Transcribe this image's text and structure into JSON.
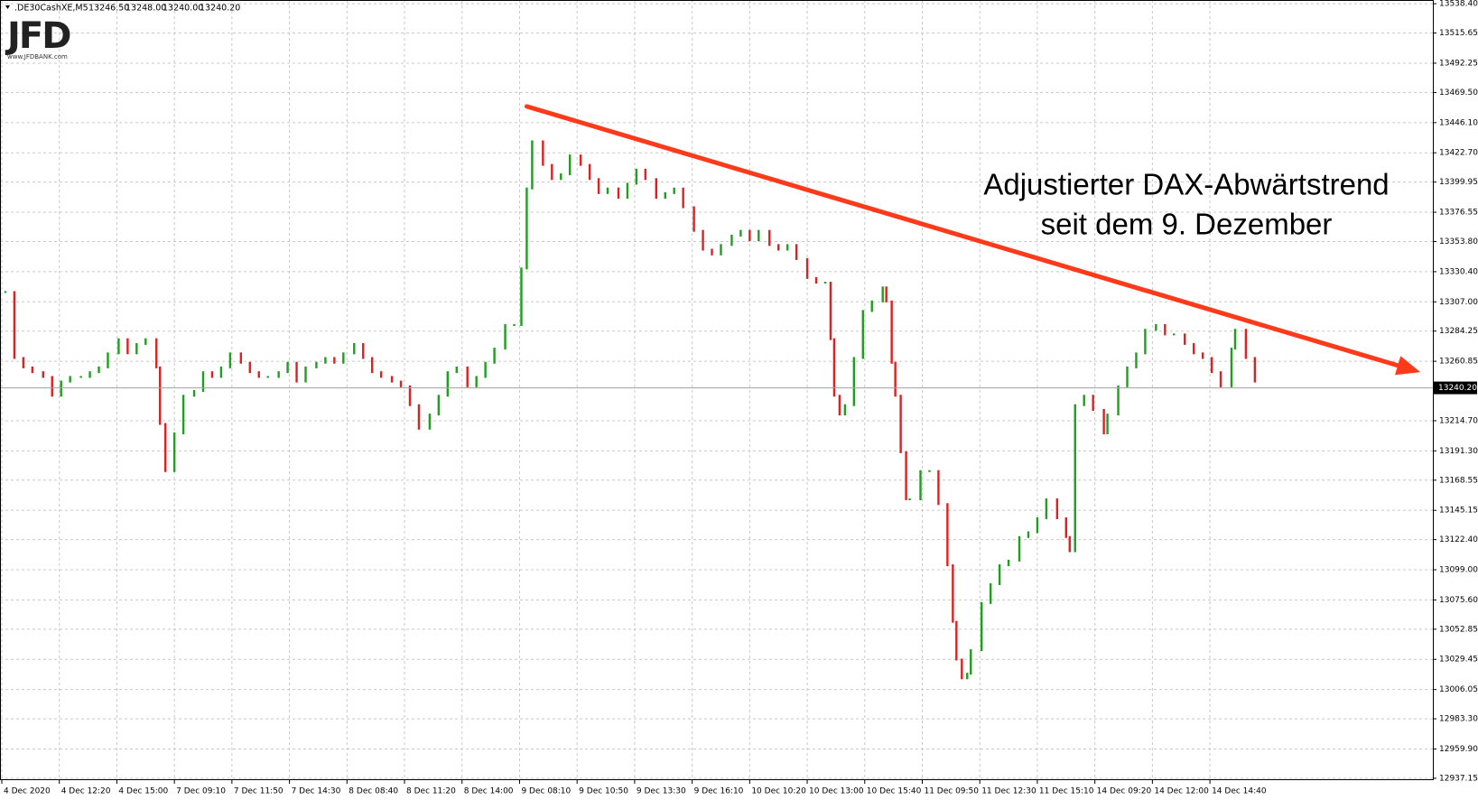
{
  "chart_data": {
    "type": "price-bars",
    "header": {
      "symbol": ".DE30CashXE,M5",
      "quote": [
        "13246.50",
        "13248.00",
        "13240.00",
        "13240.20"
      ]
    },
    "logo": {
      "text": "JFD",
      "site": "www.JFDBANK.com"
    },
    "annotation": [
      "Adjustierter DAX-Abwärtstrend",
      "seit dem 9. Dezember"
    ],
    "xlim": [
      -1,
      796
    ],
    "ylim": [
      12935.7,
      13541.3
    ],
    "grid": true,
    "xticks": [
      {
        "value": 0,
        "label": "4 Dec 2020"
      },
      {
        "value": 32,
        "label": "4 Dec 12:20"
      },
      {
        "value": 64,
        "label": "4 Dec 15:00"
      },
      {
        "value": 96,
        "label": "7 Dec 09:10"
      },
      {
        "value": 128,
        "label": "7 Dec 11:50"
      },
      {
        "value": 160,
        "label": "7 Dec 14:30"
      },
      {
        "value": 192,
        "label": "8 Dec 08:40"
      },
      {
        "value": 224,
        "label": "8 Dec 11:20"
      },
      {
        "value": 256,
        "label": "8 Dec 14:00"
      },
      {
        "value": 288,
        "label": "9 Dec 08:10"
      },
      {
        "value": 320,
        "label": "9 Dec 10:50"
      },
      {
        "value": 352,
        "label": "9 Dec 13:30"
      },
      {
        "value": 384,
        "label": "9 Dec 16:10"
      },
      {
        "value": 416,
        "label": "10 Dec 10:20"
      },
      {
        "value": 448,
        "label": "10 Dec 13:00"
      },
      {
        "value": 480,
        "label": "10 Dec 15:40"
      },
      {
        "value": 512,
        "label": "11 Dec 09:50"
      },
      {
        "value": 544,
        "label": "11 Dec 12:30"
      },
      {
        "value": 576,
        "label": "11 Dec 15:10"
      },
      {
        "value": 608,
        "label": "14 Dec 09:20"
      },
      {
        "value": 640,
        "label": "14 Dec 12:00"
      },
      {
        "value": 672,
        "label": "14 Dec 14:40"
      }
    ],
    "yticks": [
      {
        "value": 13538.4,
        "label": "13538.40"
      },
      {
        "value": 13515.65,
        "label": "13515.65"
      },
      {
        "value": 13492.25,
        "label": "13492.25"
      },
      {
        "value": 13469.5,
        "label": "13469.50"
      },
      {
        "value": 13446.1,
        "label": "13446.10"
      },
      {
        "value": 13422.7,
        "label": "13422.70"
      },
      {
        "value": 13399.95,
        "label": "13399.95"
      },
      {
        "value": 13376.55,
        "label": "13376.55"
      },
      {
        "value": 13353.8,
        "label": "13353.80"
      },
      {
        "value": 13330.4,
        "label": "13330.40"
      },
      {
        "value": 13307,
        "label": "13307.00"
      },
      {
        "value": 13284.25,
        "label": "13284.25"
      },
      {
        "value": 13260.85,
        "label": "13260.85"
      },
      {
        "value": 13214.7,
        "label": "13214.70"
      },
      {
        "value": 13191.3,
        "label": "13191.30"
      },
      {
        "value": 13168.55,
        "label": "13168.55"
      },
      {
        "value": 13145.15,
        "label": "13145.15"
      },
      {
        "value": 13122.4,
        "label": "13122.40"
      },
      {
        "value": 13099,
        "label": "13099.00"
      },
      {
        "value": 13075.6,
        "label": "13075.60"
      },
      {
        "value": 13052.85,
        "label": "13052.85"
      },
      {
        "value": 13029.45,
        "label": "13029.45"
      },
      {
        "value": 13006.05,
        "label": "13006.05"
      },
      {
        "value": 12983.3,
        "label": "12983.30"
      },
      {
        "value": 12959.9,
        "label": "12959.90"
      },
      {
        "value": 12937.15,
        "label": "12937.15"
      }
    ],
    "current_price": {
      "value": 13240.2,
      "label": "13240.20"
    },
    "up_color": "#1f9e1f",
    "down_color": "#e02020",
    "trendline": {
      "x": [
        292,
        789
      ],
      "values": [
        13458.7,
        13252.4
      ],
      "color": "#ff3a1a"
    },
    "series": [
      {
        "x": [
          2,
          7,
          12,
          17,
          23,
          28,
          33,
          38,
          44,
          49,
          54,
          59,
          65,
          70,
          75,
          80,
          86,
          88,
          91,
          96,
          101,
          107,
          112,
          117,
          122,
          127,
          133,
          138,
          143,
          148,
          154,
          159,
          164,
          169,
          175,
          180,
          185,
          190,
          196,
          201,
          206,
          211,
          217,
          222,
          227,
          232,
          238,
          243,
          248,
          253,
          259,
          264,
          269,
          274,
          280,
          285,
          289,
          292,
          295,
          301,
          306,
          311,
          316,
          322,
          327,
          332,
          337,
          343,
          348,
          353,
          358,
          364,
          369,
          374,
          379,
          385,
          390,
          395,
          400,
          406,
          411,
          416,
          421,
          427,
          432,
          437,
          442,
          448,
          453,
          458,
          461,
          463,
          466,
          469,
          474,
          479,
          484,
          490,
          492,
          495,
          497,
          500,
          503,
          505,
          511,
          516,
          521,
          526,
          529,
          531,
          534,
          537,
          539,
          545,
          550,
          555,
          560,
          566,
          571,
          576,
          581,
          587,
          592,
          594,
          597,
          602,
          607,
          613,
          615,
          621,
          626,
          631,
          636,
          642,
          647,
          652,
          658,
          663,
          668,
          673,
          678,
          684,
          686,
          692,
          697
        ],
        "values": [
          13314.6,
          13263.4,
          13256.1,
          13252.4,
          13248.7,
          13234.1,
          13245.1,
          13248.7,
          13248.7,
          13252.4,
          13256.1,
          13267.0,
          13278.0,
          13267.0,
          13274.3,
          13278.0,
          13256.1,
          13212.2,
          13175.6,
          13204.9,
          13234.1,
          13237.8,
          13252.4,
          13248.7,
          13256.1,
          13267.0,
          13259.7,
          13252.4,
          13248.7,
          13248.7,
          13252.4,
          13259.7,
          13245.1,
          13256.1,
          13259.7,
          13263.4,
          13259.7,
          13267.0,
          13274.3,
          13263.4,
          13252.4,
          13248.7,
          13245.1,
          13241.4,
          13226.8,
          13208.5,
          13219.5,
          13234.1,
          13252.4,
          13256.1,
          13241.4,
          13248.7,
          13259.7,
          13270.7,
          13289.0,
          13289.0,
          13332.9,
          13395.0,
          13431.6,
          13413.3,
          13402.3,
          13406.0,
          13420.6,
          13413.3,
          13402.3,
          13391.4,
          13395.0,
          13387.7,
          13398.7,
          13409.6,
          13402.3,
          13387.7,
          13391.4,
          13395.0,
          13380.4,
          13362.1,
          13347.5,
          13343.8,
          13351.1,
          13358.4,
          13362.1,
          13354.8,
          13362.1,
          13351.1,
          13347.5,
          13351.1,
          13340.2,
          13325.5,
          13321.9,
          13321.9,
          13278.0,
          13234.1,
          13219.5,
          13226.8,
          13263.4,
          13299.9,
          13307.3,
          13318.2,
          13307.3,
          13259.7,
          13234.1,
          13190.2,
          13153.7,
          13153.7,
          13175.6,
          13175.6,
          13150.0,
          13102.5,
          13058.6,
          13029.3,
          13014.7,
          13018.3,
          13036.6,
          13073.2,
          13087.8,
          13102.5,
          13106.1,
          13124.4,
          13128.1,
          13139.0,
          13153.7,
          13139.0,
          13124.4,
          13113.4,
          13226.8,
          13234.1,
          13223.1,
          13204.9,
          13219.5,
          13241.4,
          13256.1,
          13267.0,
          13285.3,
          13289.0,
          13281.7,
          13281.7,
          13274.3,
          13267.0,
          13263.4,
          13252.4,
          13241.4,
          13270.7,
          13285.3,
          13263.4,
          13245.1
        ]
      }
    ]
  }
}
